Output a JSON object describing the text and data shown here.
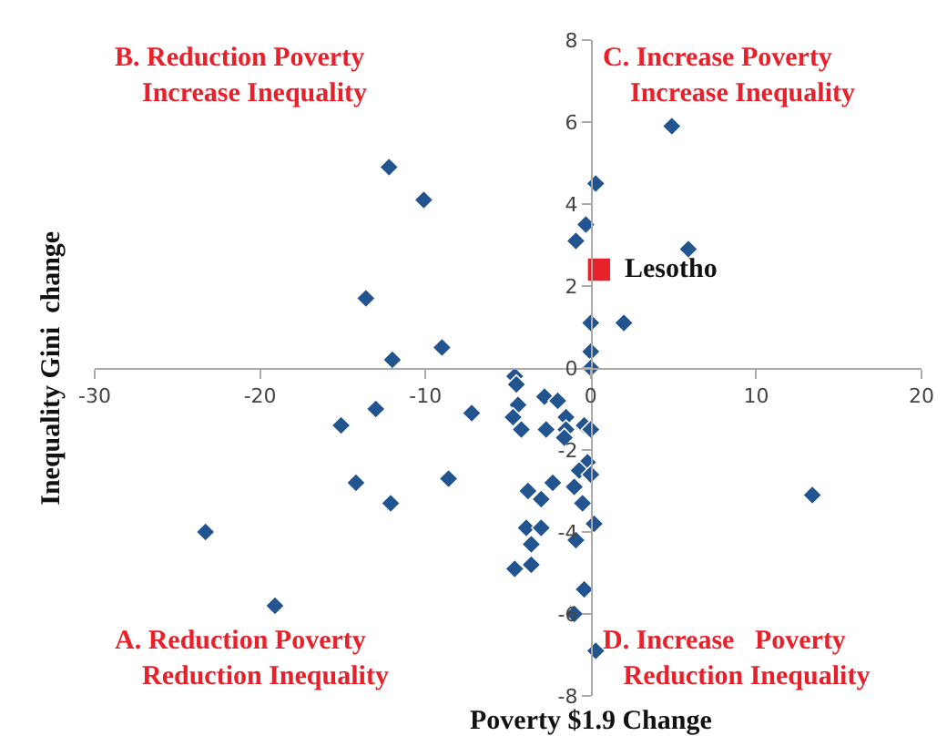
{
  "chart_data": {
    "type": "scatter",
    "xlabel": "Poverty $1.9 Change",
    "ylabel": "Inequality Gini  change",
    "xlim": [
      -30,
      20
    ],
    "xticks": [
      -30,
      -20,
      -10,
      0,
      10,
      20
    ],
    "ylim": [
      -8,
      8
    ],
    "yticks": [
      -8,
      -6,
      -4,
      -2,
      0,
      2,
      4,
      6,
      8
    ],
    "grid": false,
    "legend": false,
    "marker": "diamond",
    "annotations": [
      "B. Reduction Poverty\n    Increase Inequality",
      "C. Increase Poverty\n    Increase Inequality",
      "A. Reduction Poverty\n    Reduction Inequality",
      "D. Increase   Poverty\n   Reduction Inequality"
    ],
    "series": [
      {
        "color": "#22548f",
        "x": [
          -12.2,
          -10.1,
          -13.6,
          -9.0,
          -12.0,
          -13.0,
          -15.1,
          -14.2,
          -12.1,
          -8.6,
          -23.3,
          -19.1,
          -7.2,
          4.9,
          0.3,
          -0.3,
          -0.9,
          5.9,
          0.0,
          2.0,
          0.0,
          0.0,
          13.4,
          -4.6,
          -4.5,
          -4.4,
          -4.7,
          -4.2,
          -2.8,
          -2.0,
          -1.5,
          -2.7,
          -1.5,
          -1.6,
          -0.4,
          0.0,
          -0.2,
          -0.7,
          0.0,
          -2.3,
          -3.8,
          -3.0,
          -1.0,
          -0.5,
          -3.9,
          -3.0,
          -3.6,
          0.2,
          -0.9,
          -4.6,
          -3.6,
          -0.4,
          -1.0,
          0.3
        ],
        "values": [
          4.9,
          4.1,
          1.7,
          0.5,
          0.2,
          -1.0,
          -1.4,
          -2.8,
          -3.3,
          -2.7,
          -4.0,
          -5.8,
          -1.1,
          5.9,
          4.5,
          3.5,
          3.1,
          2.9,
          1.1,
          1.1,
          0.4,
          0.0,
          -3.1,
          -0.2,
          -0.4,
          -0.9,
          -1.2,
          -1.5,
          -0.7,
          -0.8,
          -1.2,
          -1.5,
          -1.5,
          -1.7,
          -1.4,
          -1.5,
          -2.3,
          -2.5,
          -2.6,
          -2.8,
          -3.0,
          -3.2,
          -2.9,
          -3.3,
          -3.9,
          -3.9,
          -4.3,
          -3.8,
          -4.2,
          -4.9,
          -4.8,
          -5.4,
          -6.0,
          -6.9
        ]
      },
      {
        "name": "Lesotho",
        "color": "#e8202a",
        "marker": "square",
        "x": [
          0.5
        ],
        "values": [
          2.4
        ]
      }
    ]
  }
}
